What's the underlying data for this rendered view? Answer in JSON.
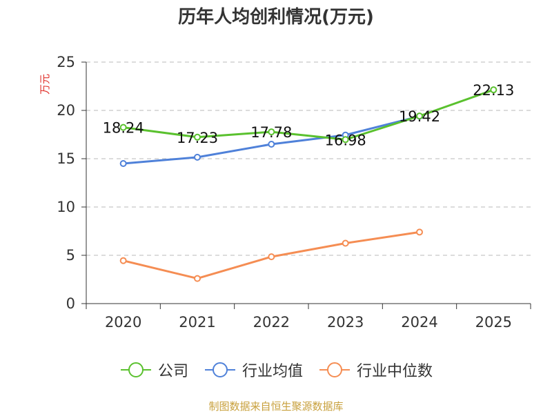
{
  "chart_data": {
    "type": "line",
    "title": "历年人均创利情况(万元)",
    "ylabel": "万元",
    "xlabel": "",
    "categories": [
      "2020",
      "2021",
      "2022",
      "2023",
      "2024",
      "2025"
    ],
    "ylim": [
      0,
      25
    ],
    "yticks": [
      0,
      5,
      10,
      15,
      20,
      25
    ],
    "grid": true,
    "legend_position": "bottom",
    "series": [
      {
        "name": "公司",
        "color": "#5ac12e",
        "values": [
          18.24,
          17.23,
          17.78,
          16.98,
          19.42,
          22.13
        ],
        "labels": [
          "18.24",
          "17.23",
          "17.78",
          "16.98",
          "19.42",
          "22.13"
        ]
      },
      {
        "name": "行业均值",
        "color": "#4f81d9",
        "values": [
          14.5,
          15.15,
          16.5,
          17.45,
          19.4,
          null
        ]
      },
      {
        "name": "行业中位数",
        "color": "#f58d53",
        "values": [
          4.45,
          2.6,
          4.85,
          6.25,
          7.4,
          null
        ]
      }
    ]
  },
  "footer": {
    "source": "制图数据来自恒生聚源数据库"
  }
}
